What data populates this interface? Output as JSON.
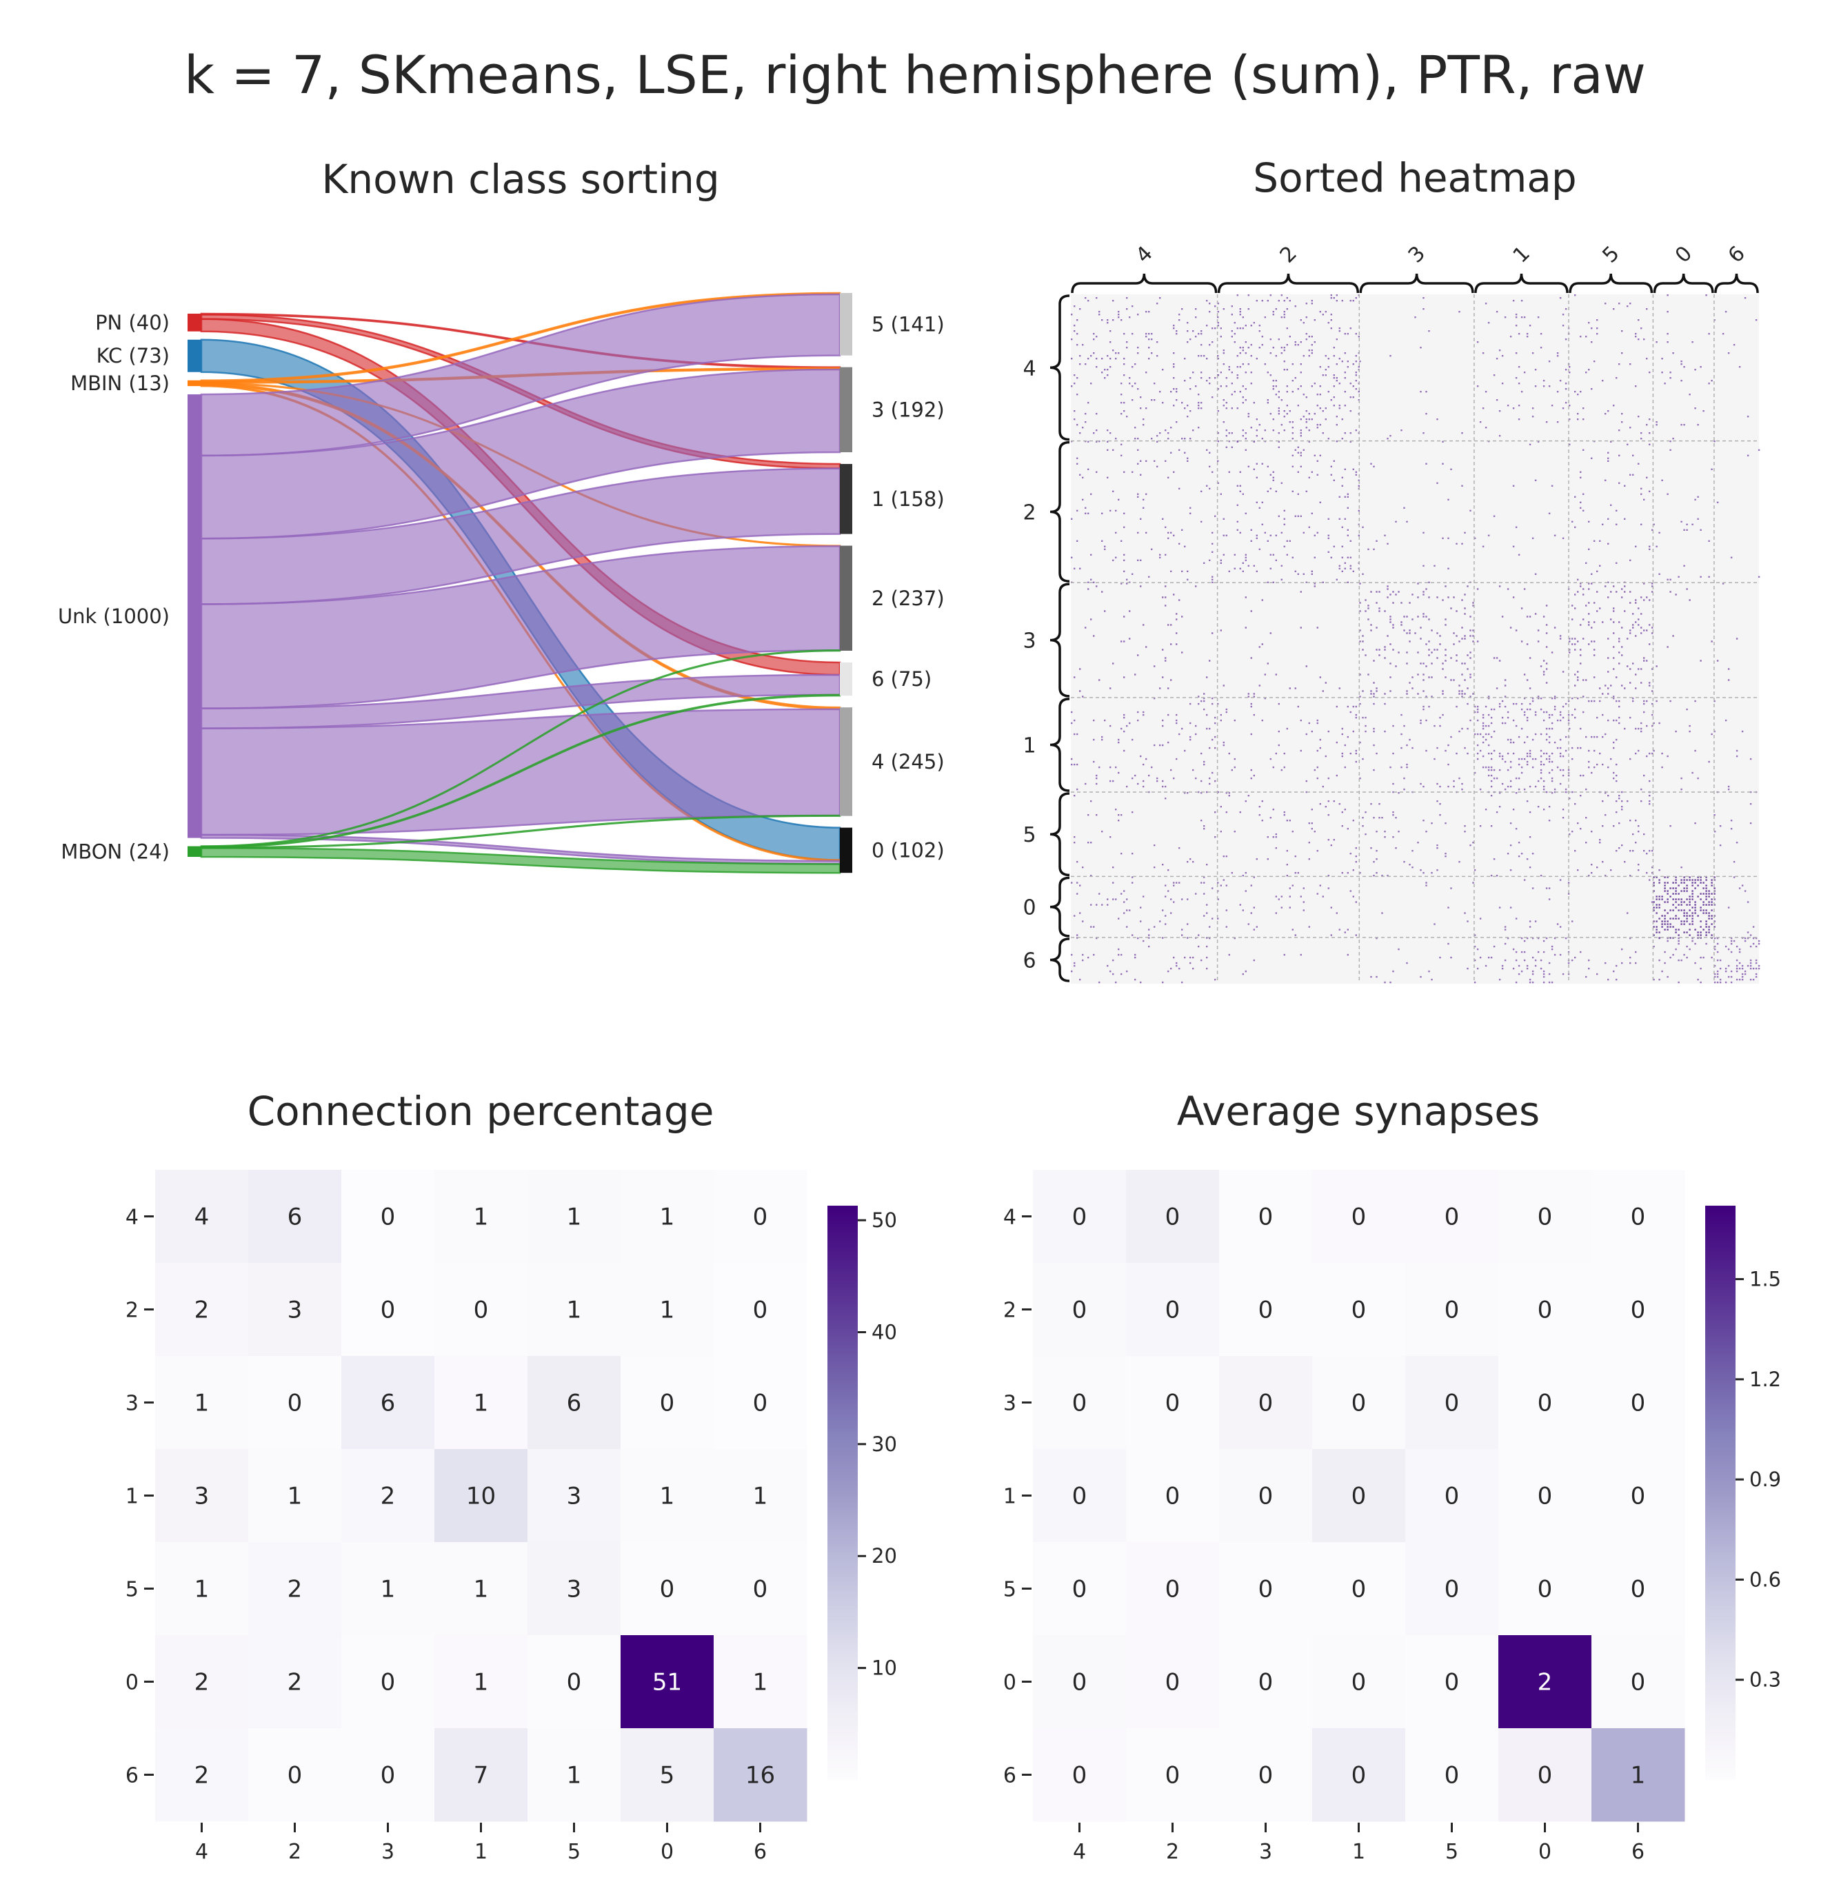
{
  "figure": {
    "title": "k = 7, SKmeans, LSE, right hemisphere (sum), PTR, raw"
  },
  "chart_data": [
    {
      "type": "sankey",
      "title": "Known class sorting",
      "sources": [
        {
          "name": "PN",
          "label": "PN (40)",
          "count": 40,
          "color": "#d62728"
        },
        {
          "name": "KC",
          "label": "KC (73)",
          "count": 73,
          "color": "#1f77b4"
        },
        {
          "name": "MBIN",
          "label": "MBIN (13)",
          "count": 13,
          "color": "#ff7f0e"
        },
        {
          "name": "Unk",
          "label": "Unk (1000)",
          "count": 1000,
          "color": "#9467bd"
        },
        {
          "name": "MBON",
          "label": "MBON (24)",
          "count": 24,
          "color": "#2ca02c"
        }
      ],
      "targets": [
        {
          "name": "5",
          "label": "5 (141)",
          "count": 141,
          "color": "#c8c8c8"
        },
        {
          "name": "3",
          "label": "3 (192)",
          "count": 192,
          "color": "#828282"
        },
        {
          "name": "1",
          "label": "1 (158)",
          "count": 158,
          "color": "#333333"
        },
        {
          "name": "2",
          "label": "2 (237)",
          "count": 237,
          "color": "#666666"
        },
        {
          "name": "6",
          "label": "6 (75)",
          "count": 75,
          "color": "#e6e6e6"
        },
        {
          "name": "4",
          "label": "4 (245)",
          "count": 245,
          "color": "#a6a6a6"
        },
        {
          "name": "0",
          "label": "0 (102)",
          "count": 102,
          "color": "#111111"
        }
      ],
      "flows": [
        {
          "source": "PN",
          "target": "3",
          "value": 2
        },
        {
          "source": "PN",
          "target": "1",
          "value": 10
        },
        {
          "source": "PN",
          "target": "6",
          "value": 28
        },
        {
          "source": "KC",
          "target": "0",
          "value": 73
        },
        {
          "source": "MBIN",
          "target": "5",
          "value": 3
        },
        {
          "source": "MBIN",
          "target": "3",
          "value": 3
        },
        {
          "source": "MBIN",
          "target": "2",
          "value": 1
        },
        {
          "source": "MBIN",
          "target": "4",
          "value": 4
        },
        {
          "source": "MBIN",
          "target": "0",
          "value": 2
        },
        {
          "source": "Unk",
          "target": "5",
          "value": 138
        },
        {
          "source": "Unk",
          "target": "3",
          "value": 187
        },
        {
          "source": "Unk",
          "target": "1",
          "value": 148
        },
        {
          "source": "Unk",
          "target": "2",
          "value": 235
        },
        {
          "source": "Unk",
          "target": "6",
          "value": 45
        },
        {
          "source": "Unk",
          "target": "4",
          "value": 240
        },
        {
          "source": "Unk",
          "target": "0",
          "value": 7
        },
        {
          "source": "MBON",
          "target": "2",
          "value": 1
        },
        {
          "source": "MBON",
          "target": "6",
          "value": 2
        },
        {
          "source": "MBON",
          "target": "4",
          "value": 1
        },
        {
          "source": "MBON",
          "target": "0",
          "value": 20
        }
      ]
    },
    {
      "type": "heatmap",
      "title": "Sorted heatmap",
      "cluster_order": [
        "4",
        "2",
        "3",
        "1",
        "5",
        "0",
        "6"
      ],
      "cluster_sizes": [
        245,
        237,
        192,
        158,
        141,
        102,
        75
      ],
      "block_density_percent": [
        [
          4,
          6,
          0,
          1,
          1,
          1,
          0
        ],
        [
          2,
          3,
          0,
          0,
          1,
          1,
          0
        ],
        [
          1,
          0,
          6,
          1,
          6,
          0,
          0
        ],
        [
          3,
          1,
          2,
          10,
          3,
          1,
          1
        ],
        [
          1,
          2,
          1,
          1,
          3,
          0,
          0
        ],
        [
          2,
          2,
          0,
          1,
          0,
          51,
          1
        ],
        [
          2,
          0,
          0,
          7,
          1,
          5,
          16
        ]
      ],
      "cmap": "Purples",
      "background": "#f5f5f5"
    },
    {
      "type": "heatmap",
      "title": "Connection percentage",
      "rows": [
        "4",
        "2",
        "3",
        "1",
        "5",
        "0",
        "6"
      ],
      "cols": [
        "4",
        "2",
        "3",
        "1",
        "5",
        "0",
        "6"
      ],
      "values": [
        [
          4,
          6,
          0,
          1,
          1,
          1,
          0
        ],
        [
          2,
          3,
          0,
          0,
          1,
          1,
          0
        ],
        [
          1,
          0,
          6,
          1,
          6,
          0,
          0
        ],
        [
          3,
          1,
          2,
          10,
          3,
          1,
          1
        ],
        [
          1,
          2,
          1,
          1,
          3,
          0,
          0
        ],
        [
          2,
          2,
          0,
          1,
          0,
          51,
          1
        ],
        [
          2,
          0,
          0,
          7,
          1,
          5,
          16
        ]
      ],
      "color_values": [
        [
          4.2,
          6.3,
          0.2,
          1.1,
          1.3,
          0.9,
          0.3
        ],
        [
          2.1,
          3.1,
          0.2,
          0.4,
          0.9,
          0.8,
          0.2
        ],
        [
          1.0,
          0.3,
          5.8,
          1.2,
          6.1,
          0.4,
          0.2
        ],
        [
          3.2,
          0.8,
          2.0,
          10.1,
          2.9,
          1.0,
          0.9
        ],
        [
          0.9,
          2.0,
          0.8,
          1.0,
          3.3,
          0.4,
          0.3
        ],
        [
          2.2,
          1.8,
          0.3,
          1.2,
          0.4,
          51.3,
          1.2
        ],
        [
          2.0,
          0.4,
          0.3,
          7.1,
          0.9,
          4.8,
          16.2
        ]
      ],
      "colorbar": {
        "min": 0,
        "max": 51.3,
        "ticks": [
          10,
          20,
          30,
          40,
          50
        ]
      },
      "cmap": "Purples"
    },
    {
      "type": "heatmap",
      "title": "Average synapses",
      "rows": [
        "4",
        "2",
        "3",
        "1",
        "5",
        "0",
        "6"
      ],
      "cols": [
        "4",
        "2",
        "3",
        "1",
        "5",
        "0",
        "6"
      ],
      "values": [
        [
          0,
          0,
          0,
          0,
          0,
          0,
          0
        ],
        [
          0,
          0,
          0,
          0,
          0,
          0,
          0
        ],
        [
          0,
          0,
          0,
          0,
          0,
          0,
          0
        ],
        [
          0,
          0,
          0,
          0,
          0,
          0,
          0
        ],
        [
          0,
          0,
          0,
          0,
          0,
          0,
          0
        ],
        [
          0,
          0,
          0,
          0,
          0,
          2,
          0
        ],
        [
          0,
          0,
          0,
          0,
          0,
          0,
          1
        ]
      ],
      "color_values": [
        [
          0.08,
          0.17,
          0.02,
          0.04,
          0.04,
          0.03,
          0.01
        ],
        [
          0.05,
          0.08,
          0.01,
          0.01,
          0.03,
          0.02,
          0.01
        ],
        [
          0.03,
          0.01,
          0.1,
          0.03,
          0.11,
          0.01,
          0.01
        ],
        [
          0.08,
          0.02,
          0.05,
          0.19,
          0.06,
          0.02,
          0.02
        ],
        [
          0.02,
          0.04,
          0.02,
          0.02,
          0.06,
          0.01,
          0.01
        ],
        [
          0.05,
          0.04,
          0.01,
          0.03,
          0.01,
          1.7,
          0.03
        ],
        [
          0.04,
          0.01,
          0.01,
          0.21,
          0.02,
          0.14,
          0.72
        ]
      ],
      "colorbar": {
        "min": 0,
        "max": 1.72,
        "ticks": [
          "0.3",
          "0.6",
          "0.9",
          "1.2",
          "1.5"
        ],
        "tick_values": [
          0.3,
          0.6,
          0.9,
          1.2,
          1.5
        ]
      },
      "cmap": "Purples"
    }
  ]
}
